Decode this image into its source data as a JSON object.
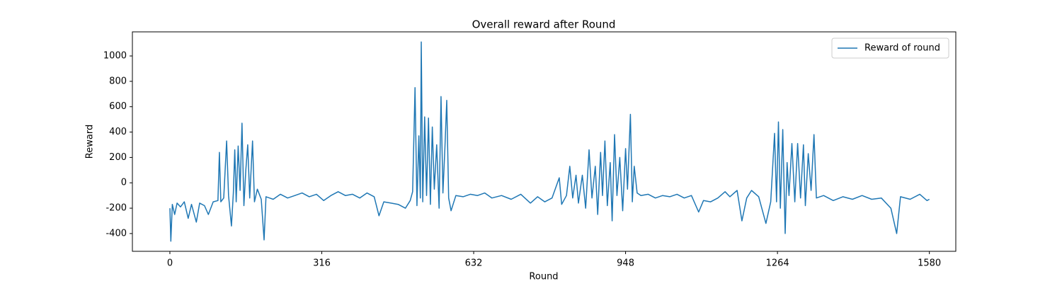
{
  "chart_data": {
    "type": "line",
    "title": "Overall reward after Round",
    "xlabel": "Round",
    "ylabel": "Reward",
    "x": [
      0,
      2,
      5,
      10,
      15,
      22,
      30,
      38,
      45,
      55,
      62,
      72,
      80,
      90,
      100,
      103,
      106,
      112,
      118,
      122,
      128,
      132,
      135,
      138,
      142,
      146,
      150,
      154,
      158,
      162,
      166,
      172,
      176,
      182,
      190,
      196,
      200,
      215,
      230,
      245,
      260,
      275,
      290,
      305,
      320,
      335,
      350,
      365,
      380,
      395,
      410,
      425,
      435,
      445,
      460,
      475,
      490,
      500,
      505,
      510,
      514,
      518,
      521,
      523,
      526,
      530,
      534,
      538,
      542,
      546,
      550,
      555,
      560,
      564,
      568,
      572,
      576,
      580,
      585,
      595,
      610,
      625,
      640,
      655,
      670,
      690,
      710,
      730,
      750,
      765,
      780,
      795,
      810,
      815,
      825,
      832,
      838,
      845,
      850,
      858,
      865,
      872,
      878,
      885,
      890,
      896,
      900,
      905,
      910,
      916,
      920,
      925,
      930,
      936,
      942,
      948,
      952,
      958,
      962,
      966,
      972,
      980,
      995,
      1010,
      1025,
      1040,
      1055,
      1070,
      1085,
      1100,
      1110,
      1125,
      1140,
      1155,
      1165,
      1180,
      1190,
      1200,
      1210,
      1225,
      1240,
      1250,
      1258,
      1262,
      1266,
      1270,
      1275,
      1280,
      1284,
      1288,
      1294,
      1300,
      1306,
      1312,
      1318,
      1322,
      1328,
      1334,
      1340,
      1345,
      1360,
      1380,
      1400,
      1420,
      1440,
      1460,
      1480,
      1500,
      1512,
      1520,
      1540,
      1560,
      1575,
      1580
    ],
    "series": [
      {
        "name": "Reward of round",
        "color": "#1f77b4",
        "values": [
          -200,
          -460,
          -170,
          -250,
          -160,
          -190,
          -150,
          -280,
          -170,
          -310,
          -160,
          -180,
          -250,
          -150,
          -140,
          240,
          -150,
          -120,
          330,
          -100,
          -340,
          -80,
          260,
          -150,
          290,
          -60,
          470,
          -180,
          100,
          300,
          -120,
          330,
          -150,
          -50,
          -130,
          -450,
          -110,
          -130,
          -90,
          -120,
          -100,
          -80,
          -110,
          -90,
          -140,
          -100,
          -70,
          -100,
          -90,
          -120,
          -80,
          -110,
          -260,
          -150,
          -160,
          -170,
          -200,
          -140,
          -70,
          750,
          -180,
          370,
          -120,
          1110,
          -150,
          520,
          -100,
          510,
          -170,
          440,
          -50,
          300,
          -200,
          680,
          -80,
          260,
          650,
          -120,
          -220,
          -100,
          -110,
          -90,
          -100,
          -80,
          -120,
          -100,
          -130,
          -90,
          -160,
          -110,
          -150,
          -120,
          40,
          -170,
          -100,
          130,
          -120,
          60,
          -160,
          60,
          -200,
          260,
          -120,
          130,
          -250,
          240,
          -100,
          330,
          -180,
          160,
          -300,
          380,
          -100,
          200,
          -220,
          270,
          -50,
          540,
          -150,
          130,
          -80,
          -100,
          -90,
          -120,
          -100,
          -110,
          -90,
          -120,
          -100,
          -230,
          -140,
          -150,
          -120,
          -70,
          -110,
          -60,
          -300,
          -120,
          -60,
          -110,
          -320,
          -150,
          390,
          -150,
          480,
          -200,
          420,
          -400,
          160,
          -100,
          310,
          -150,
          310,
          -120,
          300,
          -180,
          230,
          -60,
          380,
          -120,
          -100,
          -140,
          -110,
          -130,
          -100,
          -130,
          -120,
          -200,
          -400,
          -110,
          -130,
          -90,
          -140,
          -130
        ]
      }
    ],
    "xlim": [
      -78,
      1635
    ],
    "ylim": [
      -540,
      1190
    ],
    "xticks": [
      0,
      316,
      632,
      948,
      1264,
      1580
    ],
    "yticks": [
      -400,
      -200,
      0,
      200,
      400,
      600,
      800,
      1000
    ],
    "legend": "upper right"
  }
}
